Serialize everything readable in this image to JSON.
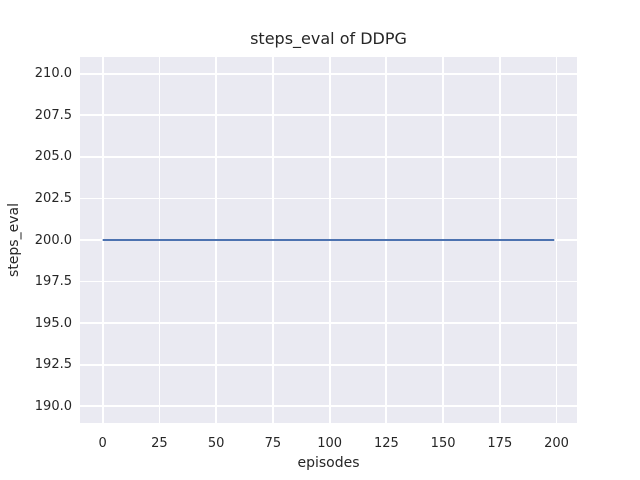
{
  "figure": {
    "title": "steps_eval of DDPG",
    "xlabel": "episodes",
    "ylabel": "steps_eval"
  },
  "chart_data": {
    "type": "line",
    "title": "steps_eval of DDPG",
    "xlabel": "episodes",
    "ylabel": "steps_eval",
    "xlim": [
      -10,
      209
    ],
    "ylim": [
      189.0,
      211.0
    ],
    "xticks": [
      0,
      25,
      50,
      75,
      100,
      125,
      150,
      175,
      200
    ],
    "xticklabels": [
      "0",
      "25",
      "50",
      "75",
      "100",
      "125",
      "150",
      "175",
      "200"
    ],
    "yticks": [
      190.0,
      192.5,
      195.0,
      197.5,
      200.0,
      202.5,
      205.0,
      207.5,
      210.0
    ],
    "yticklabels": [
      "190.0",
      "192.5",
      "195.0",
      "197.5",
      "200.0",
      "202.5",
      "205.0",
      "207.5",
      "210.0"
    ],
    "grid": true,
    "legend": false,
    "style": "seaborn-darkgrid",
    "plot_bg_color": "#eaeaf2",
    "grid_color": "#ffffff",
    "figure_bg_color": "#ffffff",
    "text_color": "#262626",
    "series": [
      {
        "name": "steps_eval",
        "color": "#4c72b0",
        "line_width": 2,
        "shape": "constant horizontal line",
        "points": [
          {
            "x": 0,
            "y": 200
          },
          {
            "x": 199,
            "y": 200
          }
        ]
      }
    ]
  }
}
